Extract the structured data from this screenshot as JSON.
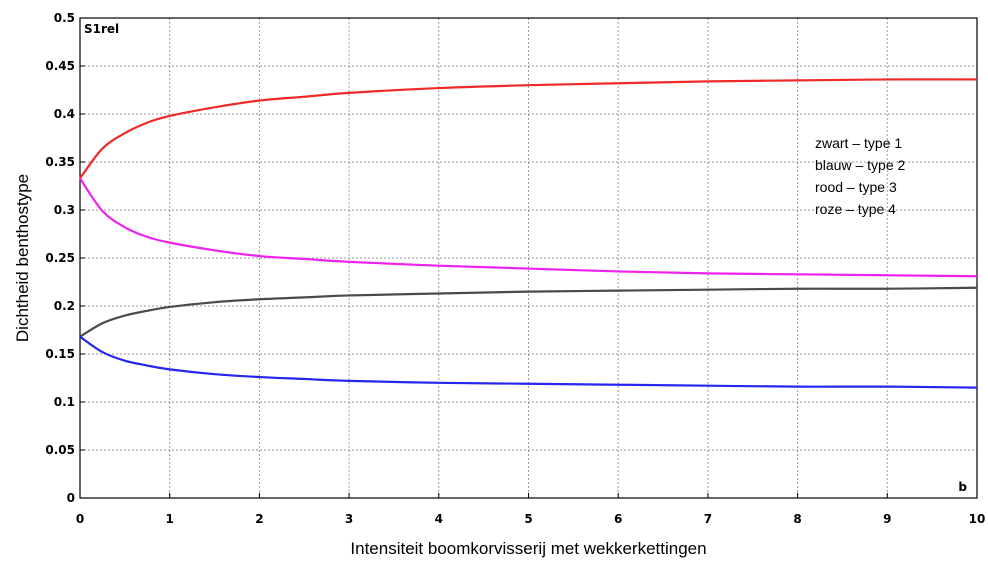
{
  "chart_data": {
    "type": "line",
    "title": "",
    "panel_label": "S1rel",
    "x_end_label": "b",
    "xlabel": "Intensiteit boomkorvisserij met wekkerkettingen",
    "ylabel": "Dichtheid benthostype",
    "xlim": [
      0,
      10
    ],
    "ylim": [
      0,
      0.5
    ],
    "x_ticks": [
      "0",
      "1",
      "2",
      "3",
      "4",
      "5",
      "6",
      "7",
      "8",
      "9",
      "10"
    ],
    "y_ticks": [
      "0",
      "0.05",
      "0.1",
      "0.15",
      "0.2",
      "0.25",
      "0.3",
      "0.35",
      "0.4",
      "0.45",
      "0.5"
    ],
    "grid": true,
    "legend_position": "right",
    "legend": [
      "zwart – type 1",
      "blauw – type 2",
      "rood – type 3",
      "roze – type 4"
    ],
    "x": [
      0,
      0.25,
      0.5,
      0.75,
      1,
      1.5,
      2,
      2.5,
      3,
      4,
      5,
      6,
      7,
      8,
      9,
      10
    ],
    "series": [
      {
        "color": "#4a4a4a",
        "values": [
          0.168,
          0.182,
          0.19,
          0.195,
          0.199,
          0.204,
          0.207,
          0.209,
          0.211,
          0.213,
          0.215,
          0.216,
          0.217,
          0.218,
          0.218,
          0.219
        ]
      },
      {
        "color": "#2626ee",
        "values": [
          0.168,
          0.152,
          0.143,
          0.138,
          0.134,
          0.129,
          0.126,
          0.124,
          0.122,
          0.12,
          0.119,
          0.118,
          0.117,
          0.116,
          0.116,
          0.115
        ]
      },
      {
        "color": "#ee2a2a",
        "values": [
          0.333,
          0.364,
          0.38,
          0.391,
          0.398,
          0.407,
          0.414,
          0.418,
          0.422,
          0.427,
          0.43,
          0.432,
          0.434,
          0.435,
          0.436,
          0.436
        ]
      },
      {
        "color": "#ee22ee",
        "values": [
          0.333,
          0.299,
          0.282,
          0.272,
          0.266,
          0.258,
          0.252,
          0.249,
          0.246,
          0.242,
          0.239,
          0.236,
          0.234,
          0.233,
          0.232,
          0.231
        ]
      }
    ]
  }
}
